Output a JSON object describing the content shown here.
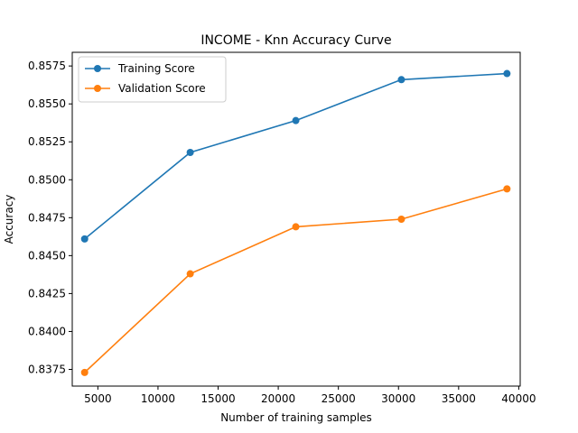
{
  "chart_data": {
    "type": "line",
    "title": "INCOME - Knn Accuracy Curve",
    "xlabel": "Number of training samples",
    "ylabel": "Accuracy",
    "xlim": [
      2870,
      40120
    ],
    "ylim": [
      0.8364,
      0.8584
    ],
    "xticks": [
      5000,
      10000,
      15000,
      20000,
      25000,
      30000,
      35000,
      40000
    ],
    "yticks": [
      0.8375,
      0.84,
      0.8425,
      0.845,
      0.8475,
      0.85,
      0.8525,
      0.855,
      0.8575
    ],
    "ytick_format": 4,
    "grid": false,
    "legend_position": "top-left",
    "x": [
      3900,
      12680,
      21460,
      30240,
      39020
    ],
    "series": [
      {
        "name": "Training Score",
        "color": "#1f77b4",
        "values": [
          0.8461,
          0.8518,
          0.8539,
          0.8566,
          0.857
        ]
      },
      {
        "name": "Validation Score",
        "color": "#ff7f0e",
        "values": [
          0.8373,
          0.8438,
          0.8469,
          0.8474,
          0.8494
        ]
      }
    ]
  }
}
